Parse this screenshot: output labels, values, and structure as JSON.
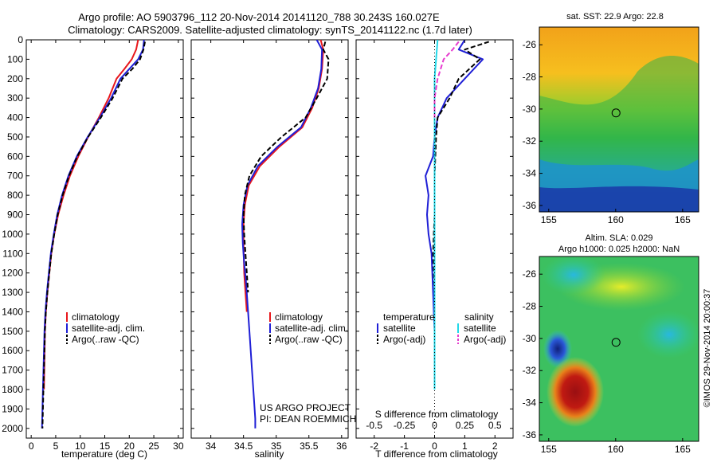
{
  "header": {
    "line1": "Argo profile: AO 5903796_112 20-Nov-2014 20141120_788 30.243S 160.027E",
    "line2": "Climatology: CARS2009. Satellite-adjusted climatology: synTS_20141122.nc (1.7d later)"
  },
  "colors": {
    "climatology": "#e8171c",
    "satellite": "#1f1fd6",
    "argo": "#000000",
    "salinity_satellite": "#22d8e8",
    "salinity_argo": "#e63ccf"
  },
  "chart_data": [
    {
      "type": "line",
      "name": "temperature profile",
      "xlabel": "temperature (deg C)",
      "ylabel": "",
      "xlim": [
        -1,
        31
      ],
      "ylim": [
        2050,
        0
      ],
      "xticks": [
        "0",
        "5",
        "10",
        "15",
        "20",
        "25",
        "30"
      ],
      "xtick_values": [
        0,
        5,
        10,
        15,
        20,
        25,
        30
      ],
      "yticks": [
        "0",
        "100",
        "200",
        "300",
        "400",
        "500",
        "600",
        "700",
        "800",
        "900",
        "1000",
        "1100",
        "1200",
        "1300",
        "1400",
        "1500",
        "1600",
        "1700",
        "1800",
        "1900",
        "2000"
      ],
      "ytick_values": [
        0,
        100,
        200,
        300,
        400,
        500,
        600,
        700,
        800,
        900,
        1000,
        1100,
        1200,
        1300,
        1400,
        1500,
        1600,
        1700,
        1800,
        1900,
        2000
      ],
      "legend": [
        "climatology",
        "satellite-adj. clim.",
        "Argo(..raw -QC)"
      ],
      "legend_position": "lower-center",
      "series": [
        {
          "name": "climatology",
          "style": "solid",
          "color": "#e8171c",
          "x": [
            21.8,
            21.4,
            20.5,
            19.0,
            17.4,
            15.8,
            13.8,
            11.6,
            9.6,
            7.9,
            6.6,
            5.5,
            4.7,
            4.1,
            3.7,
            3.3,
            3.0,
            2.8,
            2.6
          ],
          "y": [
            0,
            50,
            100,
            150,
            200,
            300,
            400,
            500,
            600,
            700,
            800,
            900,
            1000,
            1100,
            1200,
            1300,
            1400,
            1500,
            1800
          ]
        },
        {
          "name": "satellite-adj. clim.",
          "style": "solid",
          "color": "#1f1fd6",
          "x": [
            23.0,
            22.8,
            21.8,
            20.0,
            18.2,
            16.3,
            14.0,
            11.5,
            9.3,
            7.6,
            6.3,
            5.3,
            4.6,
            4.0,
            3.6,
            3.2,
            2.9,
            2.7,
            2.6,
            2.4,
            2.3,
            2.2
          ],
          "y": [
            0,
            50,
            100,
            150,
            200,
            300,
            400,
            500,
            600,
            700,
            800,
            900,
            1000,
            1100,
            1200,
            1300,
            1400,
            1500,
            1600,
            1800,
            1900,
            2000
          ]
        },
        {
          "name": "Argo(..raw -QC)",
          "style": "dashed",
          "color": "#000000",
          "x": [
            23.2,
            22.9,
            22.2,
            20.6,
            18.6,
            16.6,
            14.2,
            11.6,
            9.4,
            7.7,
            6.4,
            5.4,
            4.7,
            4.1,
            3.7,
            3.3,
            3.0,
            2.8,
            2.7,
            2.5,
            2.4,
            2.3
          ],
          "y": [
            10,
            50,
            100,
            150,
            200,
            300,
            400,
            500,
            600,
            700,
            800,
            900,
            1000,
            1100,
            1200,
            1300,
            1400,
            1500,
            1600,
            1800,
            1900,
            2000
          ]
        }
      ]
    },
    {
      "type": "line",
      "name": "salinity profile",
      "xlabel": "salinity",
      "xlim": [
        33.7,
        36.1
      ],
      "ylim": [
        2050,
        0
      ],
      "xticks": [
        "34",
        "34.5",
        "35",
        "35.5",
        "36"
      ],
      "xtick_values": [
        34,
        34.5,
        35,
        35.5,
        36
      ],
      "legend": [
        "climatology",
        "satellite-adj. clim.",
        "Argo(..raw -QC)"
      ],
      "legend_position": "lower-center",
      "annotation": [
        "US ARGO PROJECT",
        "PI: DEAN ROEMMICH"
      ],
      "series": [
        {
          "name": "climatology",
          "style": "solid",
          "color": "#e8171c",
          "x": [
            35.68,
            35.72,
            35.7,
            35.65,
            35.55,
            35.4,
            35.05,
            34.75,
            34.58,
            34.52,
            34.5,
            34.5,
            34.51,
            34.53,
            34.55
          ],
          "y": [
            0,
            50,
            150,
            250,
            350,
            450,
            550,
            650,
            750,
            850,
            950,
            1050,
            1200,
            1300,
            1400
          ]
        },
        {
          "name": "satellite-adj. clim.",
          "style": "solid",
          "color": "#1f1fd6",
          "x": [
            35.62,
            35.7,
            35.69,
            35.64,
            35.53,
            35.38,
            35.02,
            34.72,
            34.56,
            34.5,
            34.48,
            34.49,
            34.51,
            34.54,
            34.57,
            34.6,
            34.63,
            34.66,
            34.68,
            34.68
          ],
          "y": [
            0,
            50,
            150,
            250,
            350,
            450,
            550,
            650,
            750,
            850,
            950,
            1050,
            1150,
            1250,
            1400,
            1550,
            1700,
            1850,
            1950,
            2000
          ]
        },
        {
          "name": "Argo(..raw -QC)",
          "style": "dashed",
          "color": "#000000",
          "x": [
            35.75,
            35.72,
            35.8,
            35.78,
            35.62,
            35.45,
            35.08,
            34.77,
            34.59,
            34.52,
            34.5,
            34.51,
            34.53,
            34.55,
            34.57
          ],
          "y": [
            10,
            50,
            100,
            200,
            300,
            400,
            500,
            600,
            700,
            800,
            900,
            1000,
            1100,
            1200,
            1300
          ]
        }
      ]
    },
    {
      "type": "line",
      "name": "difference from climatology",
      "xlabel": "T difference from climatology",
      "xlabel_top": "S difference from climatology",
      "xlim": [
        -2.6,
        2.6
      ],
      "ylim": [
        2050,
        0
      ],
      "xticks": [
        "-2",
        "-1",
        "0",
        "1",
        "2"
      ],
      "xtick_values": [
        -2,
        -1,
        0,
        1,
        2
      ],
      "xticks_top": [
        "-0.5",
        "-0.25",
        "0",
        "0.25",
        "0.5"
      ],
      "xticks_top_values": [
        -2,
        -1,
        0,
        1,
        2
      ],
      "legend_titles": [
        "temperature",
        "salinity"
      ],
      "legend": [
        "satellite",
        "Argo(-adj)",
        "satellite",
        "Argo(-adj)"
      ],
      "legend_position": "lower-center",
      "series": [
        {
          "name": "temperature satellite",
          "style": "solid",
          "color": "#1f1fd6",
          "x": [
            1.0,
            0.8,
            1.6,
            1.0,
            0.4,
            0.1,
            0.0,
            -0.05,
            -0.3,
            -0.2,
            -0.25,
            -0.2,
            -0.1,
            -0.05,
            0.0,
            0.0,
            0.0
          ],
          "y": [
            0,
            50,
            100,
            200,
            300,
            400,
            500,
            600,
            700,
            800,
            900,
            1000,
            1100,
            1300,
            1500,
            1700,
            1800
          ]
        },
        {
          "name": "temperature Argo(-adj)",
          "style": "dashed",
          "color": "#000000",
          "x": [
            1.8,
            1.0,
            1.5,
            0.8,
            0.5,
            0.1,
            0.05,
            0.0,
            0.0,
            -0.05,
            0.0,
            0.0,
            0.0
          ],
          "y": [
            10,
            50,
            100,
            200,
            300,
            400,
            500,
            700,
            900,
            1100,
            1300,
            1500,
            1700
          ]
        },
        {
          "name": "salinity satellite",
          "style": "solid",
          "color": "#22d8e8",
          "x": [
            0.1,
            0.05,
            0.0,
            0.0,
            0.0,
            0.0,
            0.0,
            0.0,
            0.0,
            0.0,
            0.0
          ],
          "y": [
            0,
            100,
            200,
            400,
            600,
            800,
            1000,
            1200,
            1400,
            1600,
            1800
          ]
        },
        {
          "name": "salinity Argo(-adj)",
          "style": "dashed",
          "color": "#e63ccf",
          "x": [
            0.8,
            0.6,
            0.3,
            0.1,
            0.0,
            0.0
          ],
          "y": [
            10,
            50,
            100,
            200,
            300,
            400
          ]
        },
        {
          "name": "zero line",
          "style": "dotted",
          "color": "#000000",
          "x": [
            0,
            0
          ],
          "y": [
            0,
            2050
          ]
        }
      ]
    },
    {
      "type": "heatmap",
      "name": "SST map",
      "title": "sat. SST: 22.9  Argo: 22.8",
      "xlim": [
        154.3,
        166.2
      ],
      "ylim": [
        -36.4,
        -24.9
      ],
      "xticks": [
        "155",
        "160",
        "165"
      ],
      "xtick_values": [
        155,
        160,
        165
      ],
      "yticks": [
        "-26",
        "-28",
        "-30",
        "-32",
        "-34",
        "-36"
      ],
      "ytick_values": [
        -26,
        -28,
        -30,
        -32,
        -34,
        -36
      ],
      "argo_position": [
        160.027,
        -30.243
      ]
    },
    {
      "type": "heatmap",
      "name": "SLA map",
      "title": [
        "Altim. SLA: 0.029",
        "Argo h1000: 0.025 h2000: NaN"
      ],
      "xlim": [
        154.3,
        166.2
      ],
      "ylim": [
        -36.4,
        -24.9
      ],
      "xticks": [
        "155",
        "160",
        "165"
      ],
      "xtick_values": [
        155,
        160,
        165
      ],
      "yticks": [
        "-26",
        "-28",
        "-30",
        "-32",
        "-34",
        "-36"
      ],
      "ytick_values": [
        -26,
        -28,
        -30,
        -32,
        -34,
        -36
      ],
      "argo_position": [
        160.027,
        -30.243
      ]
    }
  ],
  "credit": "©IMOS 29-Nov-2014 20:00:37"
}
